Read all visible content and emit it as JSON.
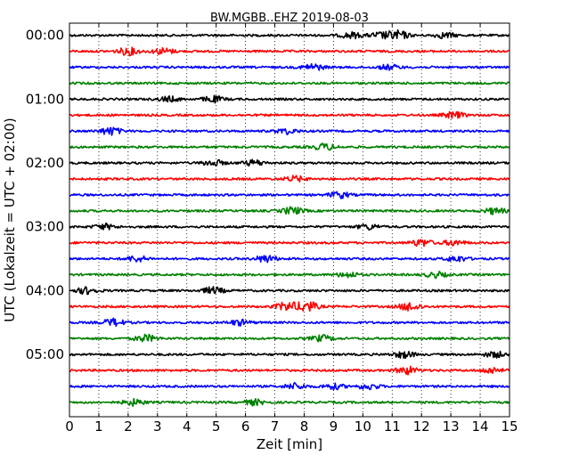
{
  "chart_data": {
    "type": "line",
    "title": "BW.MGBB..EHZ 2019-08-03",
    "xlabel": "Zeit  [min]",
    "ylabel": "UTC (Lokalzeit = UTC + 02:00)",
    "xlim": [
      0,
      15
    ],
    "x_ticks": [
      "0",
      "1",
      "2",
      "3",
      "4",
      "5",
      "6",
      "7",
      "8",
      "9",
      "10",
      "11",
      "12",
      "13",
      "14",
      "15"
    ],
    "y_ticks": [
      {
        "label": "00:00",
        "row": 0
      },
      {
        "label": "01:00",
        "row": 4
      },
      {
        "label": "02:00",
        "row": 8
      },
      {
        "label": "03:00",
        "row": 12
      },
      {
        "label": "04:00",
        "row": 16
      },
      {
        "label": "05:00",
        "row": 20
      }
    ],
    "grid": "vertical dotted at each minute",
    "row_minutes": 15,
    "row_colors": [
      "#000000",
      "#ff0000",
      "#0000ff",
      "#008000"
    ],
    "rows": [
      {
        "start": "00:00",
        "color": "#000000",
        "bursts": [
          [
            9.6,
            1.4
          ],
          [
            11.2,
            2.2
          ],
          [
            12.8,
            1.3
          ],
          [
            10.6,
            1.4
          ]
        ]
      },
      {
        "start": "00:15",
        "color": "#ff0000",
        "bursts": [
          [
            2.0,
            1.8
          ],
          [
            3.2,
            1.5
          ]
        ]
      },
      {
        "start": "00:30",
        "color": "#0000ff",
        "bursts": [
          [
            8.3,
            1.6
          ],
          [
            10.9,
            1.2
          ]
        ]
      },
      {
        "start": "00:45",
        "color": "#008000",
        "bursts": []
      },
      {
        "start": "01:00",
        "color": "#000000",
        "bursts": [
          [
            4.9,
            1.5
          ],
          [
            3.4,
            1.2
          ]
        ]
      },
      {
        "start": "01:15",
        "color": "#ff0000",
        "bursts": [
          [
            13.1,
            1.6
          ]
        ]
      },
      {
        "start": "01:30",
        "color": "#0000ff",
        "bursts": [
          [
            1.4,
            1.9
          ],
          [
            7.4,
            1.3
          ]
        ]
      },
      {
        "start": "01:45",
        "color": "#008000",
        "bursts": [
          [
            8.7,
            1.6
          ]
        ]
      },
      {
        "start": "02:00",
        "color": "#000000",
        "bursts": [
          [
            4.9,
            1.5
          ],
          [
            6.3,
            1.4
          ]
        ]
      },
      {
        "start": "02:15",
        "color": "#ff0000",
        "bursts": [
          [
            7.7,
            1.3
          ]
        ]
      },
      {
        "start": "02:30",
        "color": "#0000ff",
        "bursts": [
          [
            9.2,
            1.5
          ]
        ]
      },
      {
        "start": "02:45",
        "color": "#008000",
        "bursts": [
          [
            7.6,
            1.8
          ],
          [
            14.5,
            1.5
          ]
        ]
      },
      {
        "start": "03:00",
        "color": "#000000",
        "bursts": [
          [
            1.2,
            1.3
          ],
          [
            10.2,
            1.3
          ]
        ]
      },
      {
        "start": "03:15",
        "color": "#ff0000",
        "bursts": [
          [
            12.0,
            1.7
          ],
          [
            13.1,
            1.3
          ]
        ]
      },
      {
        "start": "03:30",
        "color": "#0000ff",
        "bursts": [
          [
            2.3,
            1.4
          ],
          [
            6.7,
            1.7
          ],
          [
            13.2,
            1.4
          ]
        ]
      },
      {
        "start": "03:45",
        "color": "#008000",
        "bursts": [
          [
            9.5,
            1.3
          ],
          [
            12.5,
            1.3
          ]
        ]
      },
      {
        "start": "04:00",
        "color": "#000000",
        "bursts": [
          [
            0.6,
            1.6
          ],
          [
            4.9,
            1.6
          ]
        ]
      },
      {
        "start": "04:15",
        "color": "#ff0000",
        "bursts": [
          [
            7.4,
            2.1
          ],
          [
            8.1,
            2.6
          ],
          [
            11.6,
            2.1
          ]
        ]
      },
      {
        "start": "04:30",
        "color": "#0000ff",
        "bursts": [
          [
            1.5,
            1.8
          ],
          [
            5.8,
            1.3
          ]
        ]
      },
      {
        "start": "04:45",
        "color": "#008000",
        "bursts": [
          [
            2.6,
            1.7
          ],
          [
            8.6,
            1.5
          ]
        ]
      },
      {
        "start": "05:00",
        "color": "#000000",
        "bursts": [
          [
            11.4,
            1.6
          ],
          [
            14.5,
            1.4
          ]
        ]
      },
      {
        "start": "05:15",
        "color": "#ff0000",
        "bursts": [
          [
            11.5,
            1.9
          ],
          [
            14.4,
            1.4
          ]
        ]
      },
      {
        "start": "05:30",
        "color": "#0000ff",
        "bursts": [
          [
            7.7,
            1.5
          ],
          [
            10.2,
            1.4
          ],
          [
            9.0,
            1.3
          ]
        ]
      },
      {
        "start": "05:45",
        "color": "#008000",
        "bursts": [
          [
            2.2,
            1.5
          ],
          [
            6.3,
            1.3
          ]
        ]
      }
    ]
  }
}
